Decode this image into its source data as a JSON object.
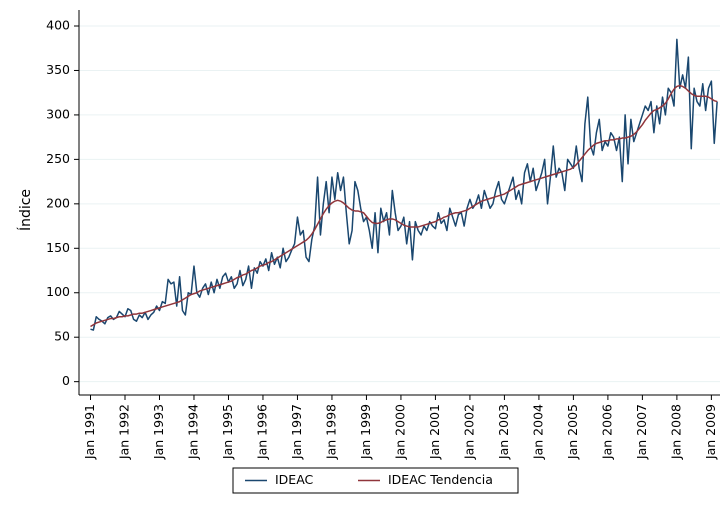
{
  "chart_data": {
    "type": "line",
    "ylabel": "Índice",
    "x": [
      "1991-01",
      "1991-02",
      "1991-03",
      "1991-04",
      "1991-05",
      "1991-06",
      "1991-07",
      "1991-08",
      "1991-09",
      "1991-10",
      "1991-11",
      "1991-12",
      "1992-01",
      "1992-02",
      "1992-03",
      "1992-04",
      "1992-05",
      "1992-06",
      "1992-07",
      "1992-08",
      "1992-09",
      "1992-10",
      "1992-11",
      "1992-12",
      "1993-01",
      "1993-02",
      "1993-03",
      "1993-04",
      "1993-05",
      "1993-06",
      "1993-07",
      "1993-08",
      "1993-09",
      "1993-10",
      "1993-11",
      "1993-12",
      "1994-01",
      "1994-02",
      "1994-03",
      "1994-04",
      "1994-05",
      "1994-06",
      "1994-07",
      "1994-08",
      "1994-09",
      "1994-10",
      "1994-11",
      "1994-12",
      "1995-01",
      "1995-02",
      "1995-03",
      "1995-04",
      "1995-05",
      "1995-06",
      "1995-07",
      "1995-08",
      "1995-09",
      "1995-10",
      "1995-11",
      "1995-12",
      "1996-01",
      "1996-02",
      "1996-03",
      "1996-04",
      "1996-05",
      "1996-06",
      "1996-07",
      "1996-08",
      "1996-09",
      "1996-10",
      "1996-11",
      "1996-12",
      "1997-01",
      "1997-02",
      "1997-03",
      "1997-04",
      "1997-05",
      "1997-06",
      "1997-07",
      "1997-08",
      "1997-09",
      "1997-10",
      "1997-11",
      "1997-12",
      "1998-01",
      "1998-02",
      "1998-03",
      "1998-04",
      "1998-05",
      "1998-06",
      "1998-07",
      "1998-08",
      "1998-09",
      "1998-10",
      "1998-11",
      "1998-12",
      "1999-01",
      "1999-02",
      "1999-03",
      "1999-04",
      "1999-05",
      "1999-06",
      "1999-07",
      "1999-08",
      "1999-09",
      "1999-10",
      "1999-11",
      "1999-12",
      "2000-01",
      "2000-02",
      "2000-03",
      "2000-04",
      "2000-05",
      "2000-06",
      "2000-07",
      "2000-08",
      "2000-09",
      "2000-10",
      "2000-11",
      "2000-12",
      "2001-01",
      "2001-02",
      "2001-03",
      "2001-04",
      "2001-05",
      "2001-06",
      "2001-07",
      "2001-08",
      "2001-09",
      "2001-10",
      "2001-11",
      "2001-12",
      "2002-01",
      "2002-02",
      "2002-03",
      "2002-04",
      "2002-05",
      "2002-06",
      "2002-07",
      "2002-08",
      "2002-09",
      "2002-10",
      "2002-11",
      "2002-12",
      "2003-01",
      "2003-02",
      "2003-03",
      "2003-04",
      "2003-05",
      "2003-06",
      "2003-07",
      "2003-08",
      "2003-09",
      "2003-10",
      "2003-11",
      "2003-12",
      "2004-01",
      "2004-02",
      "2004-03",
      "2004-04",
      "2004-05",
      "2004-06",
      "2004-07",
      "2004-08",
      "2004-09",
      "2004-10",
      "2004-11",
      "2004-12",
      "2005-01",
      "2005-02",
      "2005-03",
      "2005-04",
      "2005-05",
      "2005-06",
      "2005-07",
      "2005-08",
      "2005-09",
      "2005-10",
      "2005-11",
      "2005-12",
      "2006-01",
      "2006-02",
      "2006-03",
      "2006-04",
      "2006-05",
      "2006-06",
      "2006-07",
      "2006-08",
      "2006-09",
      "2006-10",
      "2006-11",
      "2006-12",
      "2007-01",
      "2007-02",
      "2007-03",
      "2007-04",
      "2007-05",
      "2007-06",
      "2007-07",
      "2007-08",
      "2007-09",
      "2007-10",
      "2007-11",
      "2007-12",
      "2008-01",
      "2008-02",
      "2008-03",
      "2008-04",
      "2008-05",
      "2008-06",
      "2008-07",
      "2008-08",
      "2008-09",
      "2008-10",
      "2008-11",
      "2008-12",
      "2009-01",
      "2009-02",
      "2009-03"
    ],
    "series": [
      {
        "name": "IDEAC",
        "color": "#1a476f",
        "values": [
          59,
          58,
          73,
          70,
          68,
          65,
          72,
          74,
          70,
          72,
          79,
          76,
          73,
          82,
          80,
          70,
          68,
          75,
          72,
          78,
          70,
          75,
          78,
          85,
          80,
          90,
          88,
          115,
          110,
          112,
          85,
          118,
          80,
          75,
          100,
          98,
          130,
          100,
          95,
          105,
          110,
          98,
          112,
          100,
          115,
          105,
          118,
          122,
          112,
          118,
          105,
          110,
          125,
          108,
          115,
          130,
          105,
          128,
          122,
          135,
          130,
          138,
          125,
          145,
          132,
          140,
          128,
          150,
          135,
          140,
          148,
          155,
          185,
          165,
          170,
          140,
          135,
          160,
          175,
          230,
          165,
          200,
          225,
          190,
          230,
          205,
          235,
          215,
          230,
          190,
          155,
          170,
          225,
          215,
          195,
          180,
          185,
          170,
          150,
          190,
          145,
          195,
          180,
          190,
          165,
          215,
          190,
          170,
          175,
          185,
          155,
          180,
          137,
          180,
          170,
          165,
          175,
          170,
          180,
          175,
          172,
          190,
          178,
          182,
          170,
          195,
          185,
          175,
          188,
          190,
          175,
          195,
          205,
          195,
          200,
          210,
          195,
          215,
          205,
          195,
          200,
          215,
          225,
          205,
          200,
          210,
          220,
          230,
          205,
          215,
          200,
          235,
          245,
          225,
          240,
          215,
          225,
          235,
          250,
          200,
          230,
          265,
          230,
          240,
          235,
          215,
          250,
          245,
          240,
          265,
          240,
          225,
          290,
          320,
          265,
          255,
          280,
          295,
          260,
          270,
          265,
          280,
          275,
          260,
          275,
          225,
          300,
          245,
          295,
          270,
          280,
          290,
          300,
          310,
          305,
          315,
          280,
          310,
          290,
          320,
          300,
          330,
          325,
          310,
          385,
          330,
          345,
          330,
          365,
          262,
          330,
          315,
          310,
          335,
          305,
          330,
          338,
          268,
          315
        ]
      },
      {
        "name": "IDEAC Tendencia",
        "color": "#90353b",
        "values": [
          62,
          64,
          66,
          67,
          68,
          69,
          70,
          71,
          71,
          72,
          73,
          73,
          74,
          74,
          75,
          76,
          76,
          77,
          77,
          78,
          79,
          80,
          81,
          82,
          83,
          84,
          85,
          86,
          87,
          88,
          89,
          90,
          92,
          94,
          96,
          98,
          99,
          100,
          102,
          103,
          104,
          105,
          106,
          107,
          108,
          109,
          110,
          111,
          112,
          113,
          115,
          117,
          118,
          120,
          121,
          123,
          125,
          126,
          128,
          130,
          131,
          132,
          134,
          135,
          137,
          139,
          141,
          143,
          145,
          147,
          149,
          151,
          153,
          155,
          157,
          159,
          162,
          166,
          171,
          177,
          183,
          189,
          194,
          198,
          201,
          203,
          204,
          203,
          201,
          198,
          195,
          193,
          192,
          192,
          191,
          190,
          186,
          182,
          179,
          178,
          178,
          179,
          181,
          182,
          183,
          183,
          182,
          180,
          178,
          176,
          175,
          174,
          174,
          174,
          174,
          175,
          176,
          177,
          178,
          179,
          180,
          182,
          183,
          185,
          186,
          188,
          189,
          190,
          190,
          191,
          192,
          193,
          195,
          197,
          199,
          201,
          203,
          204,
          205,
          206,
          207,
          208,
          209,
          210,
          211,
          213,
          215,
          217,
          219,
          221,
          222,
          223,
          224,
          225,
          226,
          227,
          228,
          229,
          230,
          231,
          232,
          233,
          234,
          235,
          236,
          237,
          238,
          239,
          241,
          244,
          248,
          252,
          256,
          260,
          263,
          266,
          268,
          269,
          270,
          271,
          271,
          272,
          272,
          273,
          273,
          274,
          274,
          275,
          276,
          278,
          281,
          285,
          289,
          294,
          298,
          302,
          305,
          306,
          308,
          310,
          313,
          318,
          324,
          329,
          332,
          333,
          332,
          330,
          327,
          324,
          322,
          321,
          321,
          321,
          321,
          320,
          318,
          316,
          315
        ]
      }
    ],
    "xlim": [
      "1990-09",
      "2009-04"
    ],
    "xticks": [
      {
        "value": "1991-01",
        "label": "Jan 1991"
      },
      {
        "value": "1992-01",
        "label": "Jan 1992"
      },
      {
        "value": "1993-01",
        "label": "Jan 1993"
      },
      {
        "value": "1994-01",
        "label": "Jan 1994"
      },
      {
        "value": "1995-01",
        "label": "Jan 1995"
      },
      {
        "value": "1996-01",
        "label": "Jan 1996"
      },
      {
        "value": "1997-01",
        "label": "Jan 1997"
      },
      {
        "value": "1998-01",
        "label": "Jan 1998"
      },
      {
        "value": "1999-01",
        "label": "Jan 1999"
      },
      {
        "value": "2000-01",
        "label": "Jan 2000"
      },
      {
        "value": "2001-01",
        "label": "Jan 2001"
      },
      {
        "value": "2002-01",
        "label": "Jan 2002"
      },
      {
        "value": "2003-01",
        "label": "Jan 2003"
      },
      {
        "value": "2004-01",
        "label": "Jan 2004"
      },
      {
        "value": "2005-01",
        "label": "Jan 2005"
      },
      {
        "value": "2006-01",
        "label": "Jan 2006"
      },
      {
        "value": "2007-01",
        "label": "Jan 2007"
      },
      {
        "value": "2008-01",
        "label": "Jan 2008"
      },
      {
        "value": "2009-01",
        "label": "Jan 2009"
      }
    ],
    "ylim": [
      -15,
      418
    ],
    "yticks": [
      0,
      50,
      100,
      150,
      200,
      250,
      300,
      350,
      400
    ],
    "grid": true,
    "legend": "bottom"
  }
}
